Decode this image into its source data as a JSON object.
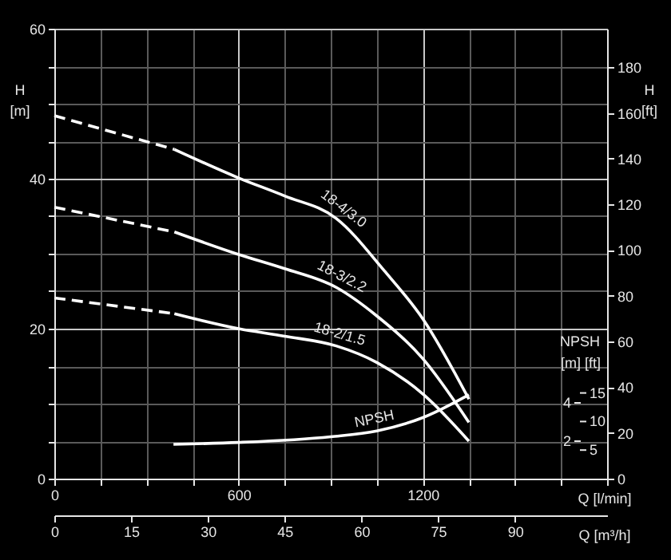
{
  "chart_data": {
    "type": "line",
    "xlabel": "Q [l/min]",
    "ylabel": "H [m]",
    "y2label": "H [ft]",
    "x2label": "Q [m³/h]",
    "y3label": "[m] [ft]",
    "annotations": [
      "NPSH",
      "15",
      "10",
      "5"
    ],
    "xlim": [
      0,
      1800
    ],
    "xticks": [
      0,
      {
        "value": 150,
        "label": null
      },
      {
        "value": 300,
        "label": null
      },
      {
        "value": 450,
        "label": null
      },
      600,
      {
        "value": 750,
        "label": null
      },
      {
        "value": 900,
        "label": null
      },
      {
        "value": 1050,
        "label": null
      },
      1200,
      {
        "value": 1350,
        "label": null
      },
      {
        "value": 1500,
        "label": null
      },
      {
        "value": 1650,
        "label": null
      },
      {
        "value": 1800,
        "label": null
      }
    ],
    "ylim": [
      0,
      60
    ],
    "yticks": [
      0,
      {
        "value": 5,
        "label": null
      },
      {
        "value": 10,
        "label": null
      },
      {
        "value": 15,
        "label": null
      },
      20,
      {
        "value": 25,
        "label": null
      },
      {
        "value": 30,
        "label": null
      },
      {
        "value": 35,
        "label": null
      },
      40,
      {
        "value": 45,
        "label": null
      },
      {
        "value": 50,
        "label": null
      },
      {
        "value": 55,
        "label": null
      },
      60
    ],
    "y2lim": [
      0,
      196.85
    ],
    "y2ticks": [
      0,
      20,
      40,
      60,
      80,
      100,
      120,
      140,
      160,
      180
    ],
    "y3lim": [
      0,
      23.6
    ],
    "y3ticks": [
      2,
      4
    ],
    "x2lim": [
      0,
      108
    ],
    "x2ticks": [
      0,
      15,
      30,
      45,
      60,
      75,
      90
    ],
    "grid": true,
    "series": [
      {
        "color": "#ffffff",
        "line_style": "dashed",
        "x": [
          0,
          391
        ],
        "values": [
          48.4,
          43.9
        ]
      },
      {
        "name": "18-4/3.0",
        "color": "#ffffff",
        "line_style": "solid",
        "x": [
          391,
          600,
          750,
          918,
          1075,
          1200,
          1350
        ],
        "values": [
          43.9,
          40.1,
          37.7,
          34.7,
          27.7,
          21.3,
          10.6
        ]
      },
      {
        "color": "#ffffff",
        "line_style": "dashed",
        "x": [
          0,
          391
        ],
        "values": [
          36.2,
          32.9
        ]
      },
      {
        "name": "18-3/2.2",
        "color": "#ffffff",
        "line_style": "solid",
        "x": [
          391,
          600,
          750,
          918,
          1050,
          1200,
          1350
        ],
        "values": [
          32.9,
          29.9,
          28.0,
          25.5,
          21.7,
          16.0,
          7.5
        ]
      },
      {
        "color": "#ffffff",
        "line_style": "dashed",
        "x": [
          0,
          391
        ],
        "values": [
          24.1,
          22.0
        ]
      },
      {
        "name": "18-2/1.5",
        "color": "#ffffff",
        "line_style": "solid",
        "x": [
          391,
          600,
          750,
          918,
          1050,
          1200,
          1350
        ],
        "values": [
          22.0,
          20.0,
          19.0,
          17.7,
          15.5,
          11.3,
          5.0
        ]
      },
      {
        "name": "NPSH",
        "color": "#ffffff",
        "line_style": "solid",
        "axis": "y3",
        "x": [
          388,
          600,
          900,
          1050,
          1200,
          1350
        ],
        "values": [
          1.8,
          1.9,
          2.2,
          2.5,
          3.2,
          4.4
        ]
      }
    ]
  }
}
